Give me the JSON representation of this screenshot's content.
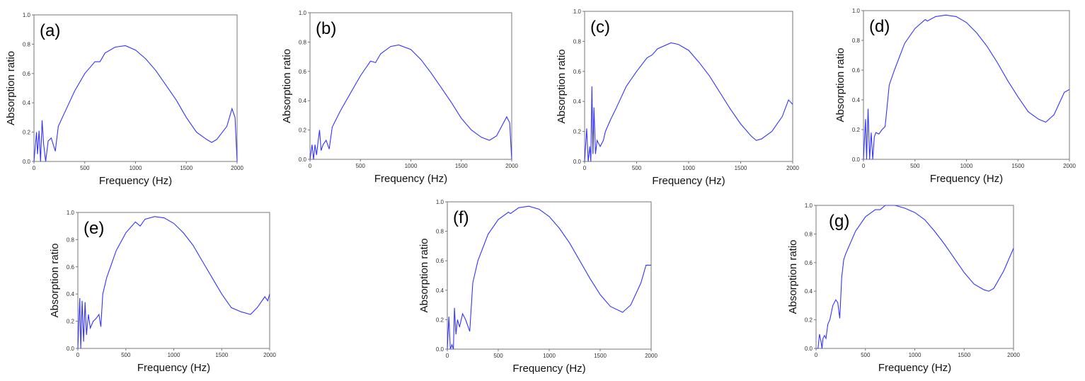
{
  "chart_data": [
    {
      "type": "line",
      "panel_label": "(a)",
      "xlabel": "Frequency (Hz)",
      "ylabel": "Absorption ratio",
      "xlim": [
        0,
        2000
      ],
      "ylim": [
        0,
        1.0
      ],
      "xticks": [
        "0",
        "500",
        "1000",
        "1500",
        "2000"
      ],
      "yticks": [
        "0.0",
        "0.2",
        "0.4",
        "0.6",
        "0.8",
        "1.0"
      ],
      "color": "#3333ff",
      "grid": false,
      "x": [
        0,
        25,
        35,
        50,
        65,
        80,
        95,
        115,
        140,
        170,
        210,
        240,
        300,
        400,
        500,
        600,
        650,
        700,
        800,
        900,
        1000,
        1100,
        1200,
        1300,
        1400,
        1500,
        1600,
        1700,
        1750,
        1800,
        1900,
        1950,
        1980,
        2000
      ],
      "y": [
        0,
        0.2,
        0.05,
        0.21,
        0,
        0.28,
        0.12,
        0,
        0.14,
        0.16,
        0.07,
        0.24,
        0.33,
        0.48,
        0.6,
        0.68,
        0.68,
        0.74,
        0.78,
        0.79,
        0.76,
        0.7,
        0.62,
        0.52,
        0.42,
        0.3,
        0.2,
        0.15,
        0.13,
        0.15,
        0.24,
        0.36,
        0.3,
        0
      ]
    },
    {
      "type": "line",
      "panel_label": "(b)",
      "xlabel": "Frequency (Hz)",
      "ylabel": "Absorption ratio",
      "xlim": [
        0,
        2000
      ],
      "ylim": [
        0,
        1.0
      ],
      "xticks": [
        "0",
        "500",
        "1000",
        "1500",
        "2000"
      ],
      "yticks": [
        "0.0",
        "0.2",
        "0.4",
        "0.6",
        "0.8",
        "1.0"
      ],
      "color": "#3333ff",
      "grid": false,
      "x": [
        0,
        20,
        35,
        50,
        65,
        80,
        95,
        110,
        130,
        160,
        190,
        220,
        300,
        400,
        500,
        600,
        650,
        700,
        800,
        880,
        1000,
        1100,
        1200,
        1300,
        1400,
        1500,
        1600,
        1700,
        1780,
        1850,
        1950,
        1980,
        2000
      ],
      "y": [
        0,
        0.1,
        0,
        0.1,
        0.03,
        0.12,
        0.2,
        0.06,
        0.1,
        0.13,
        0.07,
        0.22,
        0.33,
        0.45,
        0.57,
        0.67,
        0.66,
        0.72,
        0.77,
        0.78,
        0.75,
        0.68,
        0.59,
        0.49,
        0.39,
        0.28,
        0.2,
        0.15,
        0.13,
        0.16,
        0.29,
        0.25,
        0
      ]
    },
    {
      "type": "line",
      "panel_label": "(c)",
      "xlabel": "Frequency (Hz)",
      "ylabel": "Absorption ratio",
      "xlim": [
        0,
        2000
      ],
      "ylim": [
        0,
        1.0
      ],
      "xticks": [
        "0",
        "500",
        "1000",
        "1500",
        "2000"
      ],
      "yticks": [
        "0.0",
        "0.2",
        "0.4",
        "0.6",
        "0.8",
        "1.0"
      ],
      "color": "#3333ff",
      "grid": false,
      "x": [
        0,
        20,
        35,
        50,
        60,
        70,
        80,
        90,
        105,
        120,
        150,
        180,
        200,
        250,
        300,
        400,
        500,
        600,
        650,
        700,
        830,
        900,
        1000,
        1100,
        1200,
        1300,
        1400,
        1500,
        1600,
        1650,
        1700,
        1800,
        1900,
        1960,
        2000
      ],
      "y": [
        0,
        0.22,
        0,
        0.1,
        0,
        0.5,
        0.05,
        0.36,
        0.05,
        0.14,
        0.1,
        0.14,
        0.2,
        0.28,
        0.35,
        0.5,
        0.6,
        0.69,
        0.71,
        0.75,
        0.79,
        0.78,
        0.74,
        0.66,
        0.57,
        0.46,
        0.35,
        0.25,
        0.17,
        0.14,
        0.15,
        0.2,
        0.3,
        0.41,
        0.38
      ]
    },
    {
      "type": "line",
      "panel_label": "(d)",
      "xlabel": "Frequency (Hz)",
      "ylabel": "Absorption ratio",
      "xlim": [
        0,
        2000
      ],
      "ylim": [
        0,
        1.0
      ],
      "xticks": [
        "0",
        "500",
        "1000",
        "1500",
        "2000"
      ],
      "yticks": [
        "0.0",
        "0.2",
        "0.4",
        "0.6",
        "0.8",
        "1.0"
      ],
      "color": "#3333ff",
      "grid": false,
      "x": [
        0,
        20,
        30,
        45,
        60,
        75,
        90,
        105,
        120,
        150,
        180,
        210,
        250,
        300,
        400,
        500,
        600,
        620,
        700,
        800,
        900,
        1000,
        1100,
        1200,
        1300,
        1400,
        1500,
        1600,
        1700,
        1770,
        1850,
        1950,
        2000
      ],
      "y": [
        0,
        0.27,
        0,
        0.34,
        0,
        0.18,
        0,
        0.15,
        0.18,
        0.17,
        0.2,
        0.22,
        0.5,
        0.6,
        0.78,
        0.88,
        0.94,
        0.93,
        0.96,
        0.97,
        0.96,
        0.92,
        0.85,
        0.76,
        0.65,
        0.53,
        0.42,
        0.32,
        0.27,
        0.25,
        0.3,
        0.45,
        0.47
      ]
    },
    {
      "type": "line",
      "panel_label": "(e)",
      "xlabel": "Frequency (Hz)",
      "ylabel": "Absorption ratio",
      "xlim": [
        0,
        2000
      ],
      "ylim": [
        0,
        1.0
      ],
      "xticks": [
        "0",
        "500",
        "1000",
        "1500",
        "2000"
      ],
      "yticks": [
        "0.0",
        "0.2",
        "0.4",
        "0.6",
        "0.8",
        "1.0"
      ],
      "color": "#3333ff",
      "grid": false,
      "x": [
        0,
        20,
        30,
        45,
        60,
        75,
        90,
        110,
        130,
        160,
        190,
        220,
        240,
        260,
        300,
        400,
        500,
        600,
        650,
        700,
        800,
        900,
        1000,
        1100,
        1200,
        1300,
        1400,
        1500,
        1600,
        1700,
        1800,
        1870,
        1950,
        1980,
        2000
      ],
      "y": [
        0,
        0.37,
        0,
        0.35,
        0.05,
        0.34,
        0.1,
        0.25,
        0.15,
        0.2,
        0.22,
        0.25,
        0.16,
        0.4,
        0.52,
        0.72,
        0.85,
        0.93,
        0.9,
        0.95,
        0.97,
        0.96,
        0.92,
        0.85,
        0.76,
        0.64,
        0.52,
        0.4,
        0.3,
        0.27,
        0.25,
        0.3,
        0.38,
        0.35,
        0.4
      ]
    },
    {
      "type": "line",
      "panel_label": "(f)",
      "xlabel": "Frequency (Hz)",
      "ylabel": "Absorption ratio",
      "xlim": [
        0,
        2000
      ],
      "ylim": [
        0,
        1.0
      ],
      "xticks": [
        "0",
        "500",
        "1000",
        "1500",
        "2000"
      ],
      "yticks": [
        "0.0",
        "0.2",
        "0.4",
        "0.6",
        "0.8",
        "1.0"
      ],
      "color": "#3333ff",
      "grid": false,
      "x": [
        0,
        15,
        30,
        45,
        60,
        70,
        85,
        100,
        120,
        150,
        180,
        220,
        250,
        300,
        400,
        500,
        600,
        620,
        700,
        800,
        900,
        1000,
        1100,
        1200,
        1300,
        1400,
        1500,
        1600,
        1720,
        1800,
        1900,
        1950,
        2000
      ],
      "y": [
        0,
        0.22,
        0,
        0.03,
        0,
        0.28,
        0.1,
        0.2,
        0.15,
        0.24,
        0.2,
        0.12,
        0.45,
        0.6,
        0.78,
        0.88,
        0.93,
        0.92,
        0.96,
        0.97,
        0.95,
        0.9,
        0.82,
        0.72,
        0.6,
        0.48,
        0.37,
        0.29,
        0.25,
        0.3,
        0.45,
        0.57,
        0.57
      ]
    },
    {
      "type": "line",
      "panel_label": "(g)",
      "xlabel": "Frequency (Hz)",
      "ylabel": "Absorption ratio",
      "xlim": [
        0,
        2000
      ],
      "ylim": [
        0,
        1.0
      ],
      "xticks": [
        "0",
        "500",
        "1000",
        "1500",
        "2000"
      ],
      "yticks": [
        "0.0",
        "0.2",
        "0.4",
        "0.6",
        "0.8",
        "1.0"
      ],
      "color": "#3333ff",
      "grid": false,
      "x": [
        0,
        20,
        35,
        50,
        60,
        70,
        85,
        100,
        120,
        140,
        170,
        200,
        220,
        240,
        260,
        280,
        300,
        400,
        500,
        600,
        650,
        700,
        800,
        900,
        1000,
        1100,
        1200,
        1300,
        1400,
        1500,
        1600,
        1700,
        1750,
        1800,
        1900,
        2000
      ],
      "y": [
        0,
        0,
        0.1,
        0.05,
        0,
        0.07,
        0.09,
        0.07,
        0.17,
        0.2,
        0.3,
        0.34,
        0.32,
        0.21,
        0.5,
        0.62,
        0.66,
        0.82,
        0.92,
        0.97,
        0.97,
        1.0,
        1.0,
        0.98,
        0.95,
        0.9,
        0.82,
        0.73,
        0.63,
        0.53,
        0.45,
        0.41,
        0.4,
        0.42,
        0.54,
        0.7
      ]
    }
  ]
}
